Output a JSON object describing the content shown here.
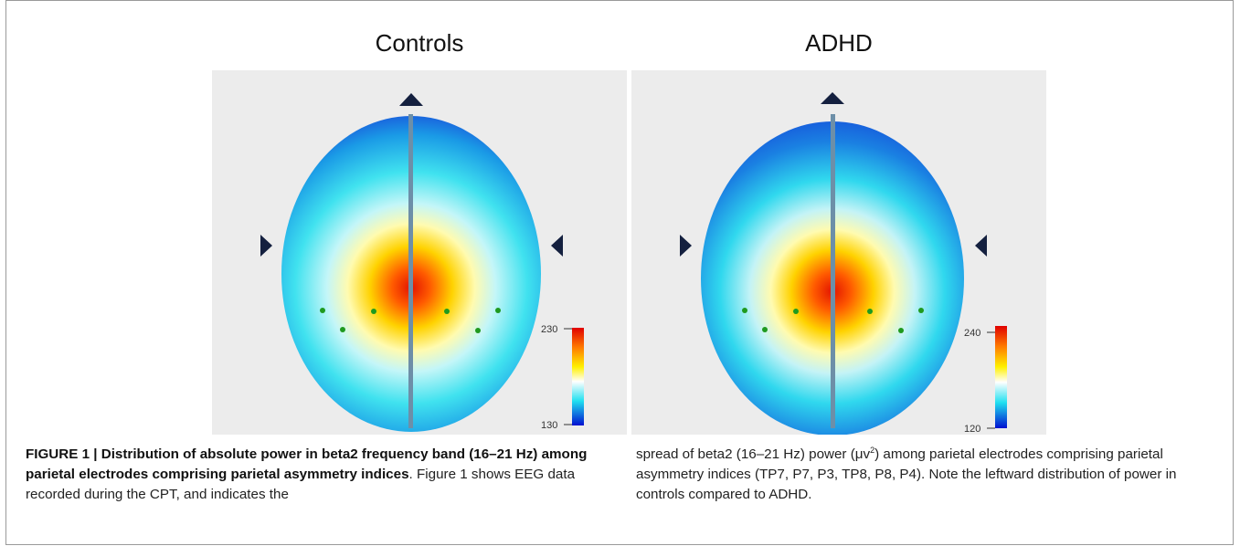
{
  "panels": [
    {
      "title": "Controls",
      "colorbar": {
        "max_label": "230",
        "min_label": "130"
      },
      "palette": {
        "edge": "#1a3ad6",
        "mid": "#34e2ee",
        "light": "#bff6f8"
      }
    },
    {
      "title": "ADHD",
      "colorbar": {
        "max_label": "240",
        "min_label": "120"
      },
      "palette": {
        "edge": "#1646d8",
        "mid": "#2fd8ee",
        "light": "#c8f3f6"
      }
    }
  ],
  "caption": {
    "figure_label": "FIGURE 1 | Distribution of absolute power in beta2 frequency band (16–21 Hz) among parietal electrodes comprising parietal asymmetry indices",
    "line_a": ". Figure 1 shows EEG data recorded during the CPT, and indicates the",
    "right_a": "spread of beta2 (16–21 Hz) power (μv",
    "right_sup": "2",
    "right_b": ") among parietal electrodes comprising parietal asymmetry indices (TP7, P7, P3, TP8, P8, P4). Note the leftward distribution of power in controls compared to ADHD."
  },
  "colors": {
    "marker": "#14203f",
    "electrode": "#1f9a1f",
    "hot": "#ff2a00"
  }
}
